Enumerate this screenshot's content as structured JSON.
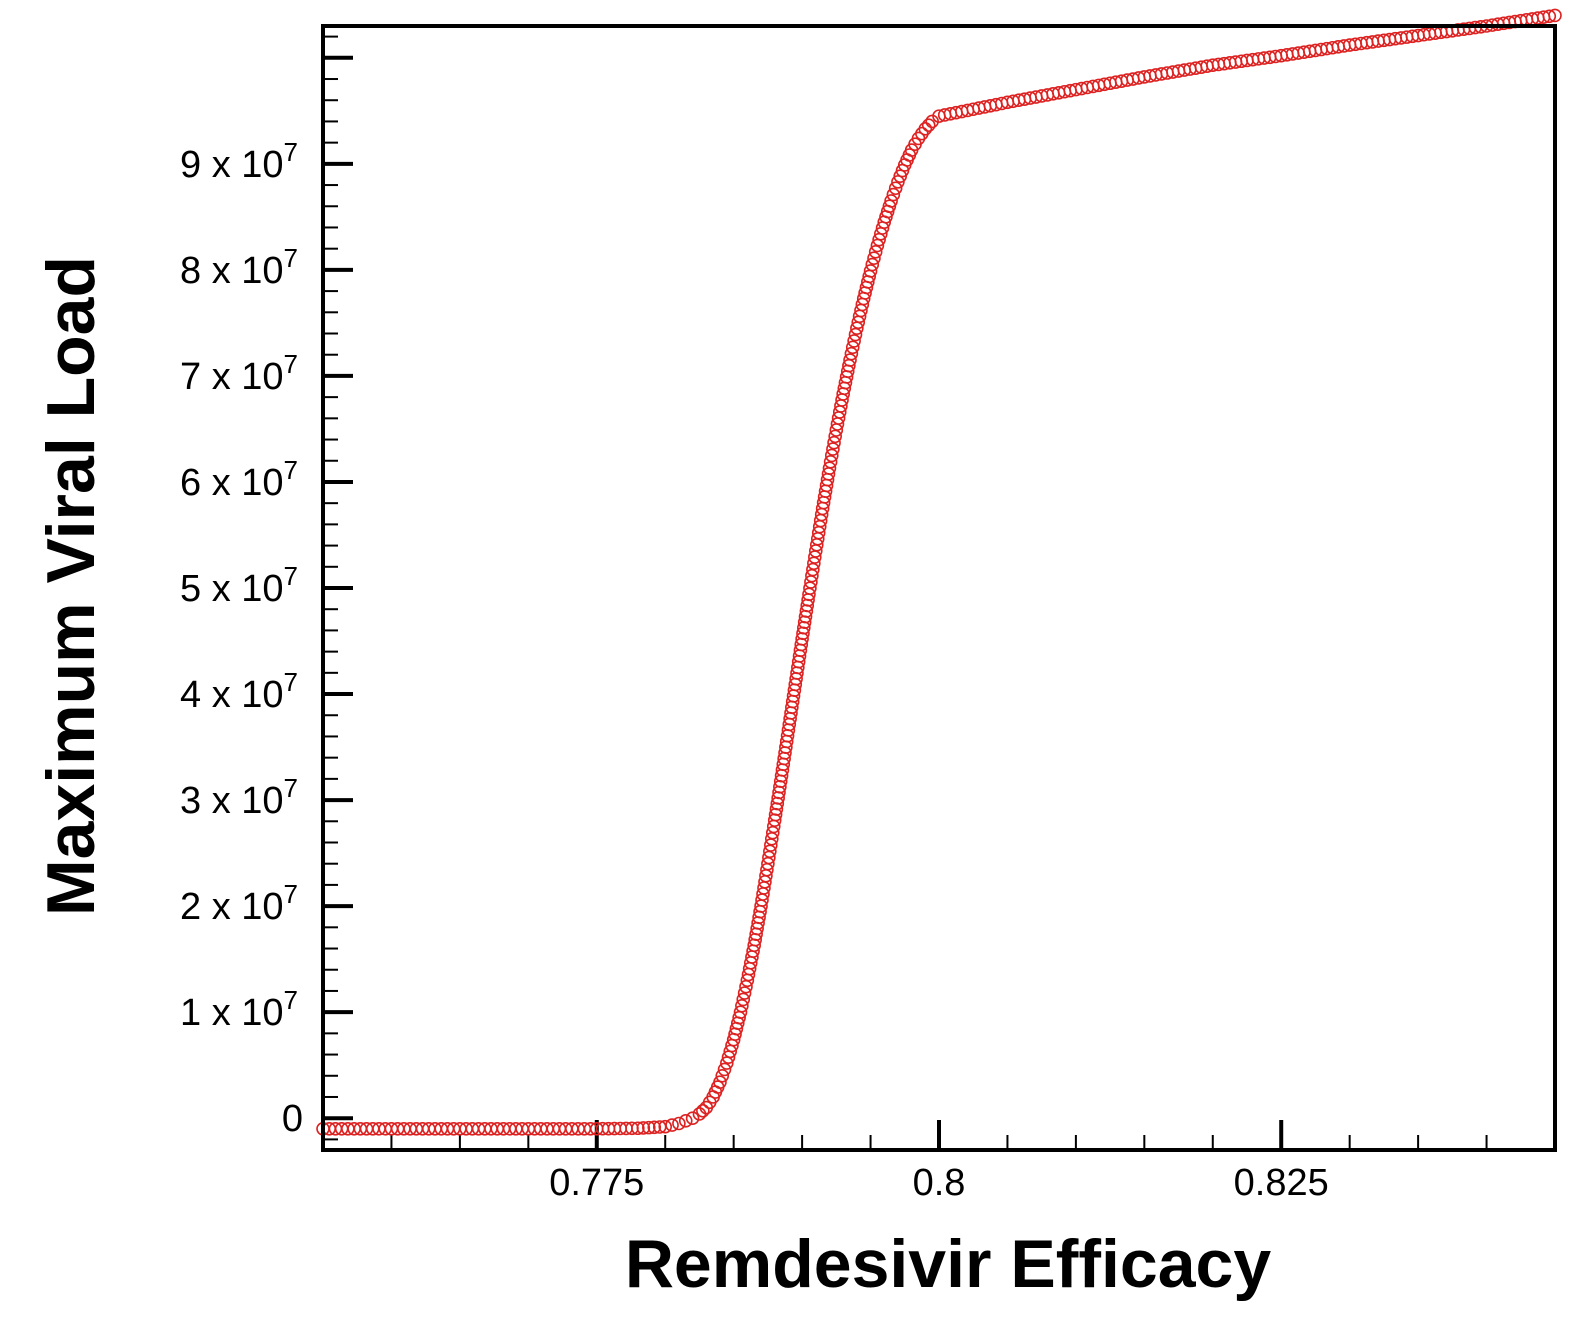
{
  "chart_data": {
    "type": "scatter",
    "title": "",
    "xlabel": "Remdesivir Efficacy",
    "ylabel": "Maximum Viral Load",
    "xlim": [
      0.755,
      0.845
    ],
    "ylim": [
      -3000000,
      103000000
    ],
    "x_ticks": [
      {
        "value": 0.775,
        "label": "0.775"
      },
      {
        "value": 0.8,
        "label": "0.8"
      },
      {
        "value": 0.825,
        "label": "0.825"
      }
    ],
    "y_ticks": [
      {
        "value": 0,
        "label": "0",
        "exp": ""
      },
      {
        "value": 10000000,
        "label": "1 x 10",
        "exp": "7"
      },
      {
        "value": 20000000,
        "label": "2 x 10",
        "exp": "7"
      },
      {
        "value": 30000000,
        "label": "3 x 10",
        "exp": "7"
      },
      {
        "value": 40000000,
        "label": "4 x 10",
        "exp": "7"
      },
      {
        "value": 50000000,
        "label": "5 x 10",
        "exp": "7"
      },
      {
        "value": 60000000,
        "label": "6 x 10",
        "exp": "7"
      },
      {
        "value": 70000000,
        "label": "7 x 10",
        "exp": "7"
      },
      {
        "value": 80000000,
        "label": "8 x 10",
        "exp": "7"
      },
      {
        "value": 90000000,
        "label": "9 x 10",
        "exp": "7"
      }
    ],
    "grid": false,
    "marker": "open-circle",
    "color": "#dd2222",
    "series": [
      {
        "x": [
          0.755,
          0.76,
          0.765,
          0.77,
          0.775,
          0.778,
          0.78,
          0.781,
          0.782,
          0.7825,
          0.783,
          0.7835,
          0.784,
          0.7845,
          0.785,
          0.7855,
          0.786,
          0.7865,
          0.787,
          0.7875,
          0.788,
          0.7885,
          0.789,
          0.7895,
          0.79,
          0.7905,
          0.791,
          0.7915,
          0.792,
          0.7925,
          0.793,
          0.7935,
          0.794,
          0.7945,
          0.795,
          0.7955,
          0.796,
          0.7965,
          0.797,
          0.7975,
          0.798,
          0.7985,
          0.799,
          0.7995,
          0.8,
          0.805,
          0.81,
          0.815,
          0.82,
          0.825,
          0.83,
          0.835,
          0.84,
          0.845
        ],
        "y": [
          -1000000,
          -1000000,
          -1000000,
          -1000000,
          -1000000,
          -950000,
          -800000,
          -500000,
          0,
          400000,
          1000000,
          2000000,
          3400000,
          5200000,
          7400000,
          10000000,
          13000000,
          16300000,
          20000000,
          24000000,
          28100000,
          32300000,
          36600000,
          40900000,
          45200000,
          49400000,
          53500000,
          57500000,
          61300000,
          64900000,
          68300000,
          71500000,
          74500000,
          77300000,
          79900000,
          82300000,
          84500000,
          86500000,
          88300000,
          89900000,
          91300000,
          92400000,
          93300000,
          94000000,
          94500000,
          95800000,
          97000000,
          98200000,
          99300000,
          100200000,
          101200000,
          102100000,
          103000000,
          104000000
        ]
      }
    ]
  }
}
